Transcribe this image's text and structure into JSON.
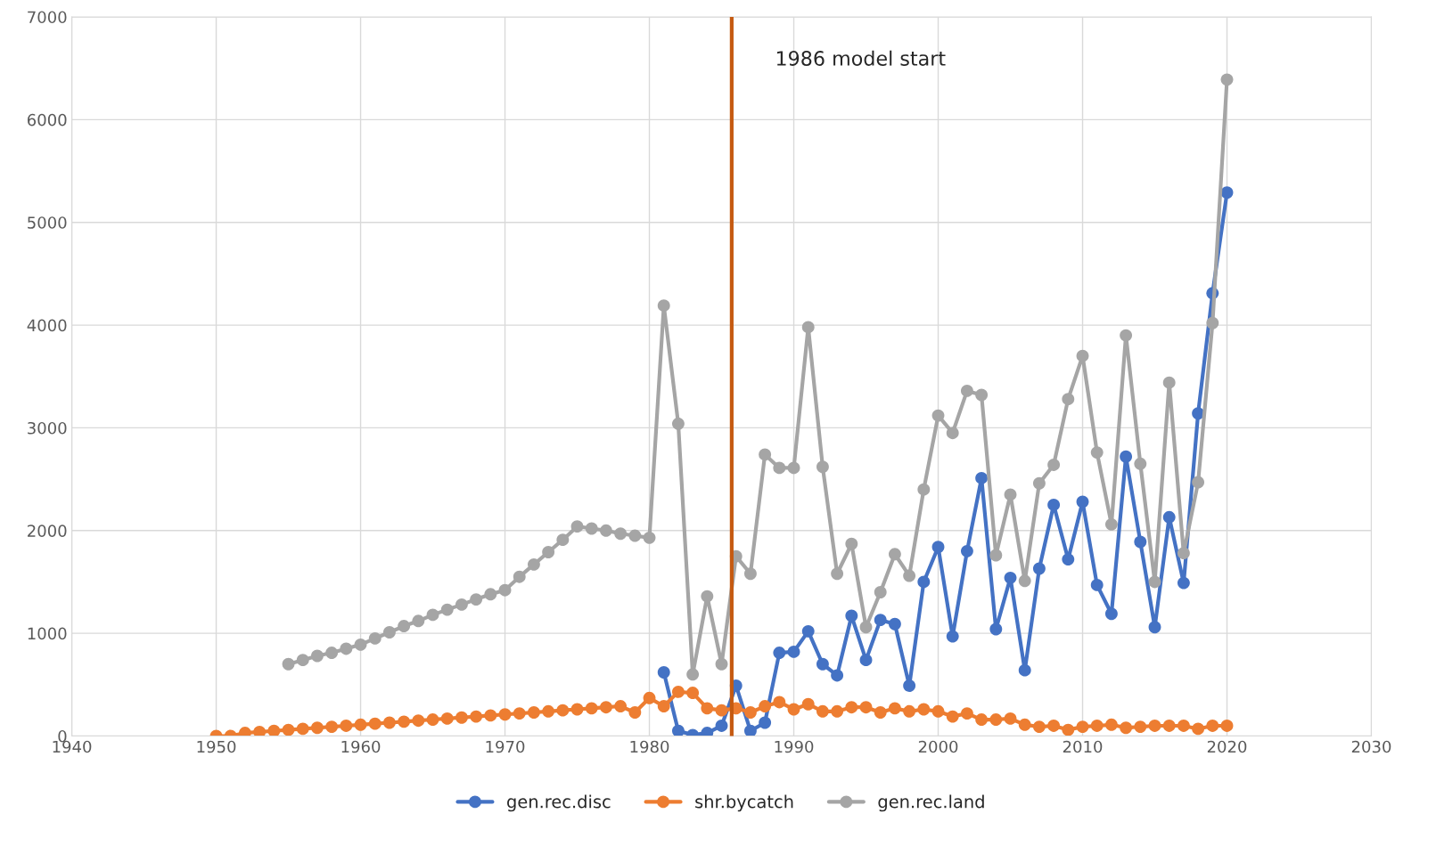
{
  "chart_data": {
    "type": "line",
    "xlim": [
      1940,
      2030
    ],
    "xticks": [
      1940,
      1950,
      1960,
      1970,
      1980,
      1990,
      2000,
      2010,
      2020,
      2030
    ],
    "ylim": [
      0,
      7000
    ],
    "yticks": [
      0,
      1000,
      2000,
      3000,
      4000,
      5000,
      6000,
      7000
    ],
    "grid": true,
    "legend": "bottom",
    "marker": "circle",
    "line_style": "solid",
    "series": [
      {
        "name": "gen.rec.disc",
        "color": "#4472c4",
        "x": [
          1981,
          1982,
          1983,
          1984,
          1985,
          1986,
          1987,
          1988,
          1989,
          1990,
          1991,
          1992,
          1993,
          1994,
          1995,
          1996,
          1997,
          1998,
          1999,
          2000,
          2001,
          2002,
          2003,
          2004,
          2005,
          2006,
          2007,
          2008,
          2009,
          2010,
          2011,
          2012,
          2013,
          2014,
          2015,
          2016,
          2017,
          2018,
          2019,
          2020
        ],
        "values": [
          620,
          50,
          10,
          30,
          100,
          490,
          50,
          130,
          810,
          820,
          1020,
          700,
          590,
          1170,
          740,
          1130,
          1090,
          490,
          1500,
          1840,
          970,
          1800,
          2510,
          1040,
          1540,
          640,
          1630,
          2250,
          1720,
          2280,
          1470,
          1190,
          2720,
          1890,
          1060,
          2130,
          1490,
          3140,
          4310,
          5290
        ]
      },
      {
        "name": "shr.bycatch",
        "color": "#ed7d31",
        "x": [
          1950,
          1951,
          1952,
          1953,
          1954,
          1955,
          1956,
          1957,
          1958,
          1959,
          1960,
          1961,
          1962,
          1963,
          1964,
          1965,
          1966,
          1967,
          1968,
          1969,
          1970,
          1971,
          1972,
          1973,
          1974,
          1975,
          1976,
          1977,
          1978,
          1979,
          1980,
          1981,
          1982,
          1983,
          1984,
          1985,
          1986,
          1987,
          1988,
          1989,
          1990,
          1991,
          1992,
          1993,
          1994,
          1995,
          1996,
          1997,
          1998,
          1999,
          2000,
          2001,
          2002,
          2003,
          2004,
          2005,
          2006,
          2007,
          2008,
          2009,
          2010,
          2011,
          2012,
          2013,
          2014,
          2015,
          2016,
          2017,
          2018,
          2019,
          2020
        ],
        "values": [
          0,
          0,
          30,
          40,
          50,
          60,
          70,
          80,
          90,
          100,
          110,
          120,
          130,
          140,
          150,
          160,
          170,
          180,
          190,
          200,
          210,
          220,
          230,
          240,
          250,
          260,
          270,
          280,
          290,
          230,
          370,
          290,
          430,
          420,
          270,
          250,
          270,
          230,
          290,
          330,
          260,
          310,
          240,
          240,
          280,
          280,
          230,
          270,
          240,
          260,
          240,
          190,
          220,
          160,
          160,
          170,
          110,
          90,
          100,
          60,
          90,
          100,
          110,
          80,
          90,
          100,
          100,
          100,
          70,
          100,
          100
        ]
      },
      {
        "name": "gen.rec.land",
        "color": "#a5a5a5",
        "x": [
          1955,
          1956,
          1957,
          1958,
          1959,
          1960,
          1961,
          1962,
          1963,
          1964,
          1965,
          1966,
          1967,
          1968,
          1969,
          1970,
          1971,
          1972,
          1973,
          1974,
          1975,
          1976,
          1977,
          1978,
          1979,
          1980,
          1981,
          1982,
          1983,
          1984,
          1985,
          1986,
          1987,
          1988,
          1989,
          1990,
          1991,
          1992,
          1993,
          1994,
          1995,
          1996,
          1997,
          1998,
          1999,
          2000,
          2001,
          2002,
          2003,
          2004,
          2005,
          2006,
          2007,
          2008,
          2009,
          2010,
          2011,
          2012,
          2013,
          2014,
          2015,
          2016,
          2017,
          2018,
          2019,
          2020
        ],
        "values": [
          700,
          740,
          780,
          810,
          850,
          890,
          950,
          1010,
          1070,
          1120,
          1180,
          1230,
          1280,
          1330,
          1380,
          1420,
          1550,
          1670,
          1790,
          1910,
          2040,
          2020,
          2000,
          1970,
          1950,
          1930,
          4190,
          3040,
          600,
          1360,
          700,
          1750,
          1580,
          2740,
          2610,
          2610,
          3980,
          2620,
          1580,
          1870,
          1060,
          1400,
          1770,
          1560,
          2400,
          3120,
          2950,
          3360,
          3320,
          1760,
          2350,
          1510,
          2460,
          2640,
          3280,
          3700,
          2760,
          2060,
          3900,
          2650,
          1500,
          3440,
          1780,
          2470,
          4020,
          6390
        ]
      }
    ],
    "ref_lines": [
      {
        "axis": "x",
        "value": 1985.7,
        "label": "1986 model start",
        "color": "#c55a11",
        "line_style": "solid"
      }
    ]
  }
}
